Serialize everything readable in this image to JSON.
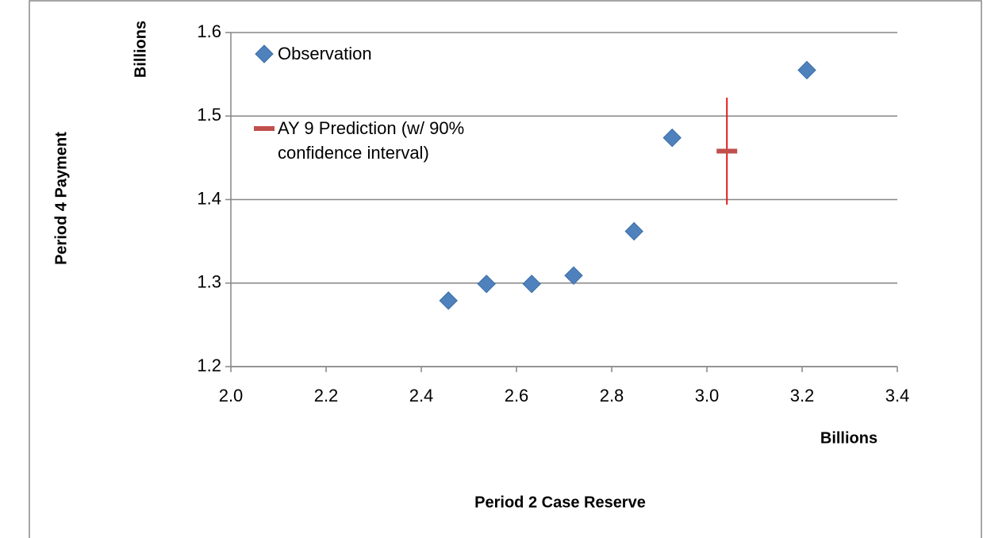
{
  "chart_data": {
    "type": "scatter",
    "x_label": "Period 2 Case Reserve",
    "y_label": "Period 4 Payment",
    "x_unit": "Billions",
    "y_unit": "Billions",
    "xlim": [
      2.0,
      3.4
    ],
    "xticks": [
      {
        "value": 2.0,
        "label": "2.0"
      },
      2.2,
      2.4,
      2.6,
      2.8,
      {
        "value": 3.0,
        "label": "3.0"
      },
      3.2,
      3.4
    ],
    "ylim": [
      1.2,
      1.6
    ],
    "yticks": [
      1.2,
      1.3,
      1.4,
      1.5,
      1.6
    ],
    "grid": true,
    "legend": "top-left",
    "series": [
      {
        "name": "Observation",
        "color": "#4f81bd",
        "marker": "diamond",
        "x": [
          2.457,
          2.537,
          2.632,
          2.72,
          2.847,
          2.927,
          3.21
        ],
        "values": [
          1.279,
          1.299,
          1.299,
          1.309,
          1.362,
          1.474,
          1.555
        ]
      },
      {
        "name": "AY 9 Prediction (w/ 90% confidence interval)",
        "color": "#c0504d",
        "marker": "dash",
        "error_color": "#e31a1c",
        "x": [
          3.042
        ],
        "values": [
          1.458
        ],
        "errors": [
          0.064
        ]
      }
    ]
  }
}
